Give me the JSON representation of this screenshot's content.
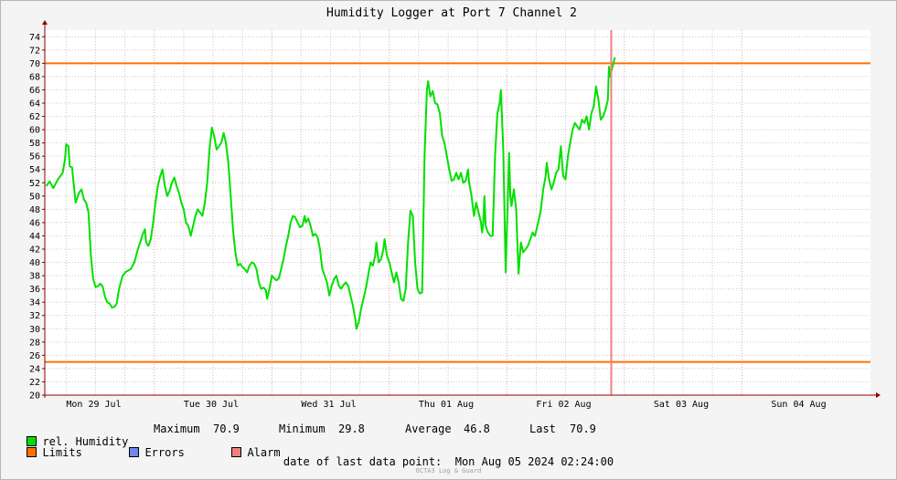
{
  "chart_data": {
    "type": "line",
    "title": "Humidity Logger at Port 7 Channel 2",
    "ylim": [
      20,
      75
    ],
    "y_ticks": [
      20,
      22,
      24,
      26,
      28,
      30,
      32,
      34,
      36,
      38,
      40,
      42,
      44,
      46,
      48,
      50,
      52,
      54,
      56,
      58,
      60,
      62,
      64,
      66,
      68,
      70,
      72,
      74
    ],
    "x_start_label": "Mon 29 Jul",
    "x_tick_labels": [
      "Mon 29 Jul",
      "Tue 30 Jul",
      "Wed 31 Jul",
      "Thu 01 Aug",
      "Fri 02 Aug",
      "Sat 03 Aug",
      "Sun 04 Aug"
    ],
    "x_end": "Mon Aug 05 2024 02:24:00",
    "grid": true,
    "limits": {
      "upper": 70,
      "lower": 25
    },
    "series": [
      {
        "name": "rel. Humidity",
        "color": "#00e000",
        "points": [
          [
            -0.42,
            51.5
          ],
          [
            -0.39,
            52.2
          ],
          [
            -0.36,
            51.2
          ],
          [
            -0.32,
            52.5
          ],
          [
            -0.28,
            53.5
          ],
          [
            -0.26,
            55.5
          ],
          [
            -0.25,
            57.8
          ],
          [
            -0.23,
            57.5
          ],
          [
            -0.22,
            54.5
          ],
          [
            -0.2,
            54.3
          ],
          [
            -0.19,
            52.5
          ],
          [
            -0.17,
            49
          ],
          [
            -0.14,
            50.5
          ],
          [
            -0.12,
            51
          ],
          [
            -0.1,
            49.5
          ],
          [
            -0.08,
            49
          ],
          [
            -0.06,
            47.5
          ],
          [
            -0.04,
            41
          ],
          [
            -0.02,
            37.5
          ],
          [
            0,
            36.3
          ],
          [
            0.02,
            36.4
          ],
          [
            0.04,
            36.8
          ],
          [
            0.06,
            36.4
          ],
          [
            0.08,
            34.8
          ],
          [
            0.1,
            34
          ],
          [
            0.12,
            33.8
          ],
          [
            0.14,
            33.2
          ],
          [
            0.16,
            33.3
          ],
          [
            0.18,
            33.8
          ],
          [
            0.2,
            36
          ],
          [
            0.23,
            38
          ],
          [
            0.26,
            38.6
          ],
          [
            0.3,
            39
          ],
          [
            0.33,
            40
          ],
          [
            0.36,
            42
          ],
          [
            0.38,
            43
          ],
          [
            0.4,
            44.2
          ],
          [
            0.42,
            45
          ],
          [
            0.43,
            43
          ],
          [
            0.45,
            42.5
          ],
          [
            0.47,
            43.5
          ],
          [
            0.49,
            46
          ],
          [
            0.51,
            49
          ],
          [
            0.53,
            51.5
          ],
          [
            0.55,
            53
          ],
          [
            0.57,
            54
          ],
          [
            0.59,
            51.5
          ],
          [
            0.61,
            50
          ],
          [
            0.63,
            50.8
          ],
          [
            0.65,
            52
          ],
          [
            0.67,
            52.8
          ],
          [
            0.69,
            51.5
          ],
          [
            0.71,
            50.5
          ],
          [
            0.73,
            49
          ],
          [
            0.75,
            48
          ],
          [
            0.77,
            46
          ],
          [
            0.79,
            45.5
          ],
          [
            0.81,
            44
          ],
          [
            0.83,
            45.5
          ],
          [
            0.85,
            47
          ],
          [
            0.87,
            48
          ],
          [
            0.89,
            47.5
          ],
          [
            0.91,
            47
          ],
          [
            0.93,
            49
          ],
          [
            0.95,
            52
          ],
          [
            0.97,
            57
          ],
          [
            0.99,
            60.3
          ],
          [
            1.01,
            59
          ],
          [
            1.03,
            57
          ],
          [
            1.05,
            57.5
          ],
          [
            1.07,
            58
          ],
          [
            1.09,
            59.5
          ],
          [
            1.11,
            58
          ],
          [
            1.13,
            55
          ],
          [
            1.15,
            50
          ],
          [
            1.17,
            45
          ],
          [
            1.19,
            41.5
          ],
          [
            1.21,
            39.5
          ],
          [
            1.23,
            39.8
          ],
          [
            1.25,
            39.3
          ],
          [
            1.27,
            39
          ],
          [
            1.29,
            38.5
          ],
          [
            1.31,
            39.5
          ],
          [
            1.33,
            40
          ],
          [
            1.35,
            39.8
          ],
          [
            1.37,
            39
          ],
          [
            1.39,
            37
          ],
          [
            1.41,
            36
          ],
          [
            1.43,
            36.2
          ],
          [
            1.45,
            35.8
          ],
          [
            1.46,
            34.5
          ],
          [
            1.48,
            36
          ],
          [
            1.5,
            38
          ],
          [
            1.52,
            37.6
          ],
          [
            1.54,
            37.3
          ],
          [
            1.56,
            37.6
          ],
          [
            1.58,
            39
          ],
          [
            1.6,
            40.5
          ],
          [
            1.62,
            42.5
          ],
          [
            1.64,
            44
          ],
          [
            1.66,
            46
          ],
          [
            1.68,
            47
          ],
          [
            1.7,
            46.8
          ],
          [
            1.72,
            46
          ],
          [
            1.74,
            45.3
          ],
          [
            1.76,
            45.5
          ],
          [
            1.78,
            47
          ],
          [
            1.79,
            46
          ],
          [
            1.81,
            46.6
          ],
          [
            1.83,
            45.5
          ],
          [
            1.85,
            44
          ],
          [
            1.87,
            44.3
          ],
          [
            1.89,
            43.8
          ],
          [
            1.91,
            42
          ],
          [
            1.93,
            39
          ],
          [
            1.95,
            38
          ],
          [
            1.97,
            37
          ],
          [
            1.99,
            35
          ],
          [
            2.01,
            36.5
          ],
          [
            2.03,
            37.5
          ],
          [
            2.05,
            38
          ],
          [
            2.07,
            36.5
          ],
          [
            2.09,
            36
          ],
          [
            2.11,
            36.6
          ],
          [
            2.13,
            37
          ],
          [
            2.15,
            36.5
          ],
          [
            2.17,
            35
          ],
          [
            2.19,
            33.5
          ],
          [
            2.21,
            31.5
          ],
          [
            2.22,
            30
          ],
          [
            2.24,
            31
          ],
          [
            2.26,
            33
          ],
          [
            2.28,
            34.5
          ],
          [
            2.3,
            36
          ],
          [
            2.32,
            38
          ],
          [
            2.34,
            40
          ],
          [
            2.36,
            39.5
          ],
          [
            2.38,
            41
          ],
          [
            2.39,
            43
          ],
          [
            2.41,
            40
          ],
          [
            2.43,
            40.5
          ],
          [
            2.45,
            42
          ],
          [
            2.46,
            43.5
          ],
          [
            2.48,
            41
          ],
          [
            2.5,
            40
          ],
          [
            2.52,
            38.5
          ],
          [
            2.54,
            37
          ],
          [
            2.56,
            38.5
          ],
          [
            2.58,
            37
          ],
          [
            2.6,
            34.5
          ],
          [
            2.62,
            34.2
          ],
          [
            2.64,
            36
          ],
          [
            2.66,
            43
          ],
          [
            2.68,
            47.8
          ],
          [
            2.7,
            47
          ],
          [
            2.72,
            40
          ],
          [
            2.74,
            36
          ],
          [
            2.76,
            35.3
          ],
          [
            2.78,
            35.5
          ],
          [
            2.8,
            56
          ],
          [
            2.82,
            66
          ],
          [
            2.83,
            67.3
          ],
          [
            2.85,
            65
          ],
          [
            2.87,
            65.8
          ],
          [
            2.89,
            64
          ],
          [
            2.91,
            63.8
          ],
          [
            2.93,
            62.5
          ],
          [
            2.95,
            59
          ],
          [
            2.97,
            58
          ],
          [
            2.99,
            56
          ],
          [
            3.01,
            54
          ],
          [
            3.03,
            52.3
          ],
          [
            3.05,
            52.5
          ],
          [
            3.07,
            53.5
          ],
          [
            3.09,
            52.5
          ],
          [
            3.11,
            53.5
          ],
          [
            3.13,
            52
          ],
          [
            3.15,
            52.3
          ],
          [
            3.17,
            54
          ],
          [
            3.18,
            52
          ],
          [
            3.2,
            50
          ],
          [
            3.22,
            47
          ],
          [
            3.24,
            49
          ],
          [
            3.26,
            47.5
          ],
          [
            3.28,
            46
          ],
          [
            3.29,
            44.5
          ],
          [
            3.3,
            46
          ],
          [
            3.31,
            50
          ],
          [
            3.32,
            45.5
          ],
          [
            3.34,
            44.5
          ],
          [
            3.36,
            44
          ],
          [
            3.38,
            44
          ],
          [
            3.4,
            56
          ],
          [
            3.42,
            62.5
          ],
          [
            3.44,
            64
          ],
          [
            3.45,
            66
          ],
          [
            3.47,
            57
          ],
          [
            3.48,
            48
          ],
          [
            3.49,
            38.5
          ],
          [
            3.51,
            50
          ],
          [
            3.52,
            56.5
          ],
          [
            3.53,
            50
          ],
          [
            3.54,
            48.5
          ],
          [
            3.56,
            51
          ],
          [
            3.58,
            48
          ],
          [
            3.6,
            38.3
          ],
          [
            3.62,
            43
          ],
          [
            3.64,
            41.5
          ],
          [
            3.66,
            42
          ],
          [
            3.68,
            42.5
          ],
          [
            3.7,
            43.5
          ],
          [
            3.72,
            44.5
          ],
          [
            3.74,
            44
          ],
          [
            3.76,
            45.5
          ],
          [
            3.78,
            47
          ],
          [
            3.79,
            48
          ],
          [
            3.81,
            51
          ],
          [
            3.83,
            53
          ],
          [
            3.84,
            55
          ],
          [
            3.86,
            52.5
          ],
          [
            3.88,
            51
          ],
          [
            3.9,
            52
          ],
          [
            3.92,
            53.5
          ],
          [
            3.94,
            54
          ],
          [
            3.96,
            57.5
          ],
          [
            3.98,
            53
          ],
          [
            4,
            52.5
          ],
          [
            4.02,
            56
          ],
          [
            4.04,
            58
          ],
          [
            4.06,
            60
          ],
          [
            4.08,
            61
          ],
          [
            4.1,
            60.5
          ],
          [
            4.12,
            60
          ],
          [
            4.14,
            61.5
          ],
          [
            4.16,
            61
          ],
          [
            4.18,
            62
          ],
          [
            4.2,
            60
          ],
          [
            4.22,
            62.5
          ],
          [
            4.24,
            63.5
          ],
          [
            4.26,
            66.5
          ],
          [
            4.28,
            64.5
          ],
          [
            4.3,
            61.5
          ],
          [
            4.32,
            62
          ],
          [
            4.34,
            63
          ],
          [
            4.36,
            64.5
          ],
          [
            4.37,
            69.5
          ],
          [
            4.38,
            68
          ],
          [
            4.4,
            69.5
          ],
          [
            4.42,
            70.9
          ]
        ]
      }
    ]
  },
  "legend": {
    "humidity_label": "rel. Humidity",
    "maximum_label": "Maximum",
    "maximum_value": "70.9",
    "minimum_label": "Minimum",
    "minimum_value": "29.8",
    "average_label": "Average",
    "average_value": "46.8",
    "last_label": "Last",
    "last_value": "70.9",
    "limits_label": "Limits",
    "errors_label": "Errors",
    "alarm_label": "Alarm"
  },
  "colors": {
    "humidity": "#00e000",
    "limits": "#ff7000",
    "errors": "#7088e8",
    "alarm": "#f08080",
    "grid_major": "#e8a0a0",
    "grid_minor": "#c8c8c8",
    "axis": "#8b0000"
  },
  "footer": {
    "date_label": "date of last data point:",
    "date_value": "Mon Aug 05 2024 02:24:00",
    "watermark": "OCTA3 Log & Guard"
  }
}
